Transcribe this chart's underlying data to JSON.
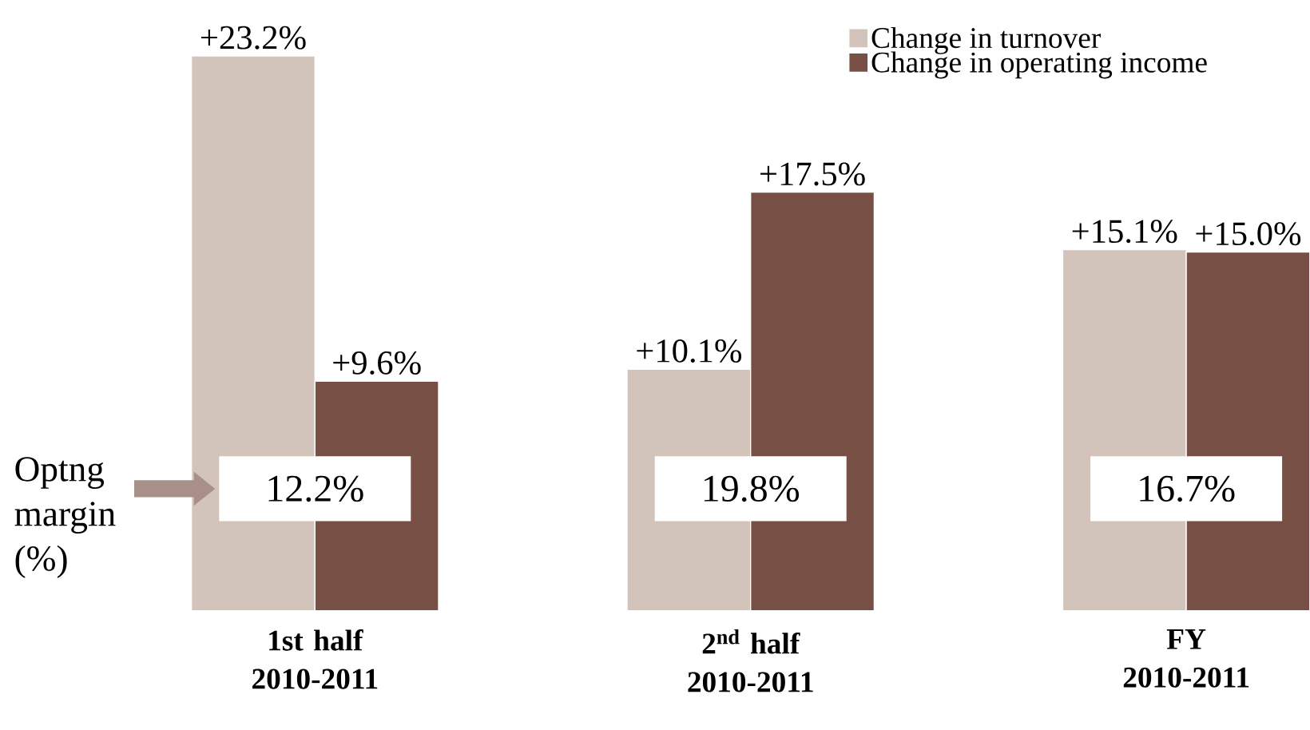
{
  "chart_data": {
    "type": "bar",
    "categories": [
      "1st half 2010-2011",
      "2$^{nd}$ half 2010-2011",
      "FY 2010-2011"
    ],
    "series": [
      {
        "name": "Change in turnover",
        "color": "#d3c4bb",
        "values": [
          23.2,
          10.1,
          15.1
        ],
        "value_labels": [
          "+23.2%",
          "+10.1%",
          "+15.1%"
        ]
      },
      {
        "name": "Change in operating income",
        "color": "#774f44",
        "values": [
          9.6,
          17.5,
          15.0
        ],
        "value_labels": [
          "+9.6%",
          "+17.5%",
          "+15.0%"
        ]
      }
    ],
    "annotations": [
      "Optng margin (%)",
      "12.2%",
      "19.8%",
      "16.7%"
    ],
    "legend": "top right"
  }
}
